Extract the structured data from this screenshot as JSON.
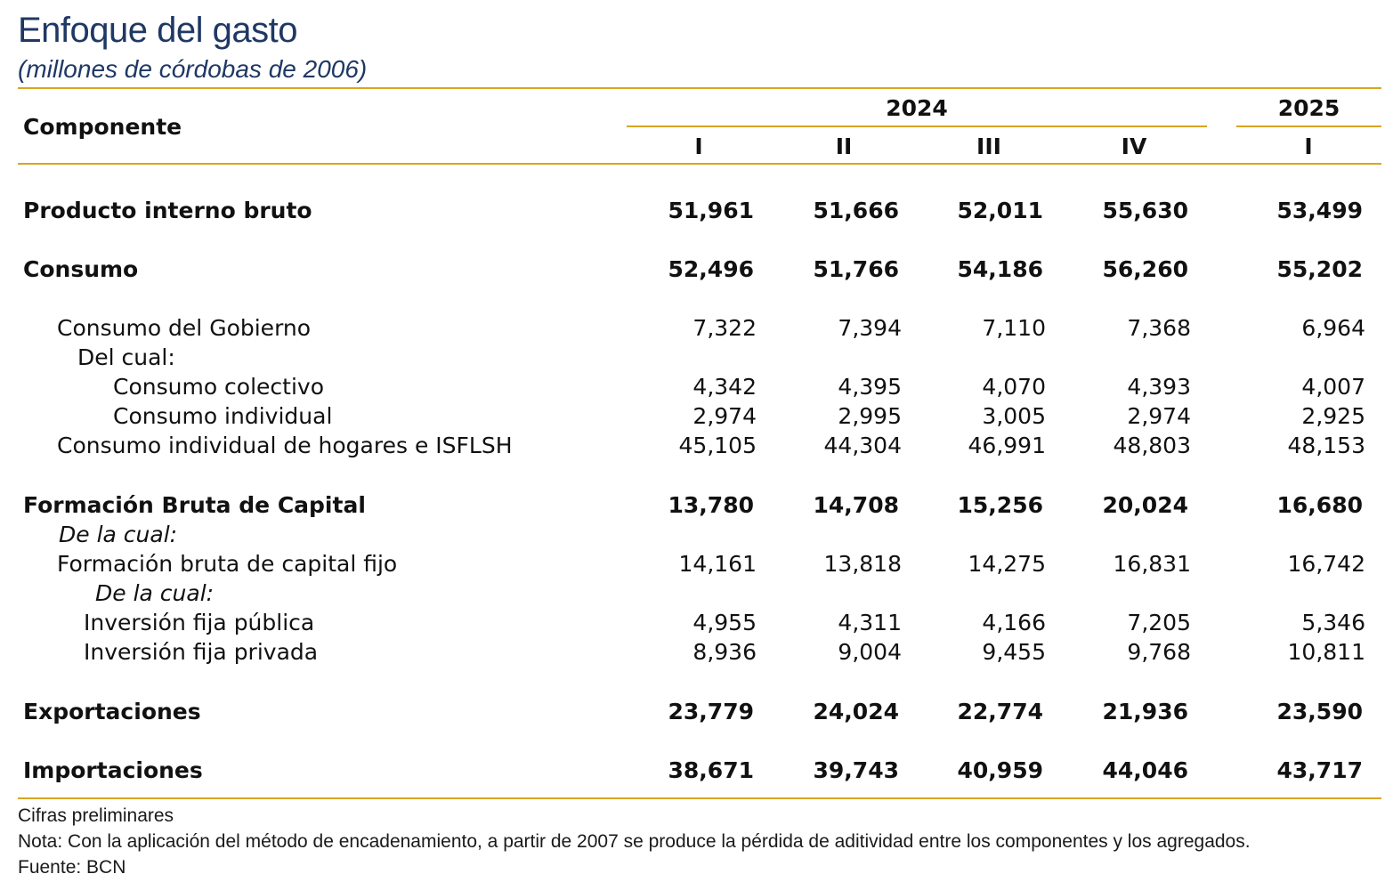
{
  "title": "Enfoque del gasto",
  "subtitle": "(millones de córdobas de 2006)",
  "header": {
    "component_label": "Componente",
    "year_2024": "2024",
    "year_2025": "2025",
    "quarters": [
      "I",
      "II",
      "III",
      "IV",
      "I"
    ]
  },
  "rows": [
    {
      "label": "Producto interno bruto",
      "values": [
        "51,961",
        "51,666",
        "52,011",
        "55,630",
        "53,499"
      ]
    },
    {
      "label": "Consumo",
      "values": [
        "52,496",
        "51,766",
        "54,186",
        "56,260",
        "55,202"
      ]
    },
    {
      "label": "Consumo del Gobierno",
      "values": [
        "7,322",
        "7,394",
        "7,110",
        "7,368",
        "6,964"
      ]
    },
    {
      "label": "Del cual:",
      "values": []
    },
    {
      "label": "Consumo colectivo",
      "values": [
        "4,342",
        "4,395",
        "4,070",
        "4,393",
        "4,007"
      ]
    },
    {
      "label": "Consumo individual",
      "values": [
        "2,974",
        "2,995",
        "3,005",
        "2,974",
        "2,925"
      ]
    },
    {
      "label": "Consumo individual de hogares e ISFLSH",
      "values": [
        "45,105",
        "44,304",
        "46,991",
        "48,803",
        "48,153"
      ]
    },
    {
      "label": "Formación Bruta de Capital",
      "values": [
        "13,780",
        "14,708",
        "15,256",
        "20,024",
        "16,680"
      ]
    },
    {
      "label": "De la cual:",
      "values": []
    },
    {
      "label": "Formación bruta de capital fijo",
      "values": [
        "14,161",
        "13,818",
        "14,275",
        "16,831",
        "16,742"
      ]
    },
    {
      "label": "De la cual:",
      "values": []
    },
    {
      "label": "Inversión fija pública",
      "values": [
        "4,955",
        "4,311",
        "4,166",
        "7,205",
        "5,346"
      ]
    },
    {
      "label": "Inversión fija privada",
      "values": [
        "8,936",
        "9,004",
        "9,455",
        "9,768",
        "10,811"
      ]
    },
    {
      "label": "Exportaciones",
      "values": [
        "23,779",
        "24,024",
        "22,774",
        "21,936",
        "23,590"
      ]
    },
    {
      "label": "Importaciones",
      "values": [
        "38,671",
        "39,743",
        "40,959",
        "44,046",
        "43,717"
      ]
    }
  ],
  "notes": [
    "Cifras preliminares",
    "Nota: Con la aplicación del método de encadenamiento, a partir de 2007 se produce la pérdida de aditividad entre los componentes y los agregados.",
    "Fuente: BCN"
  ]
}
